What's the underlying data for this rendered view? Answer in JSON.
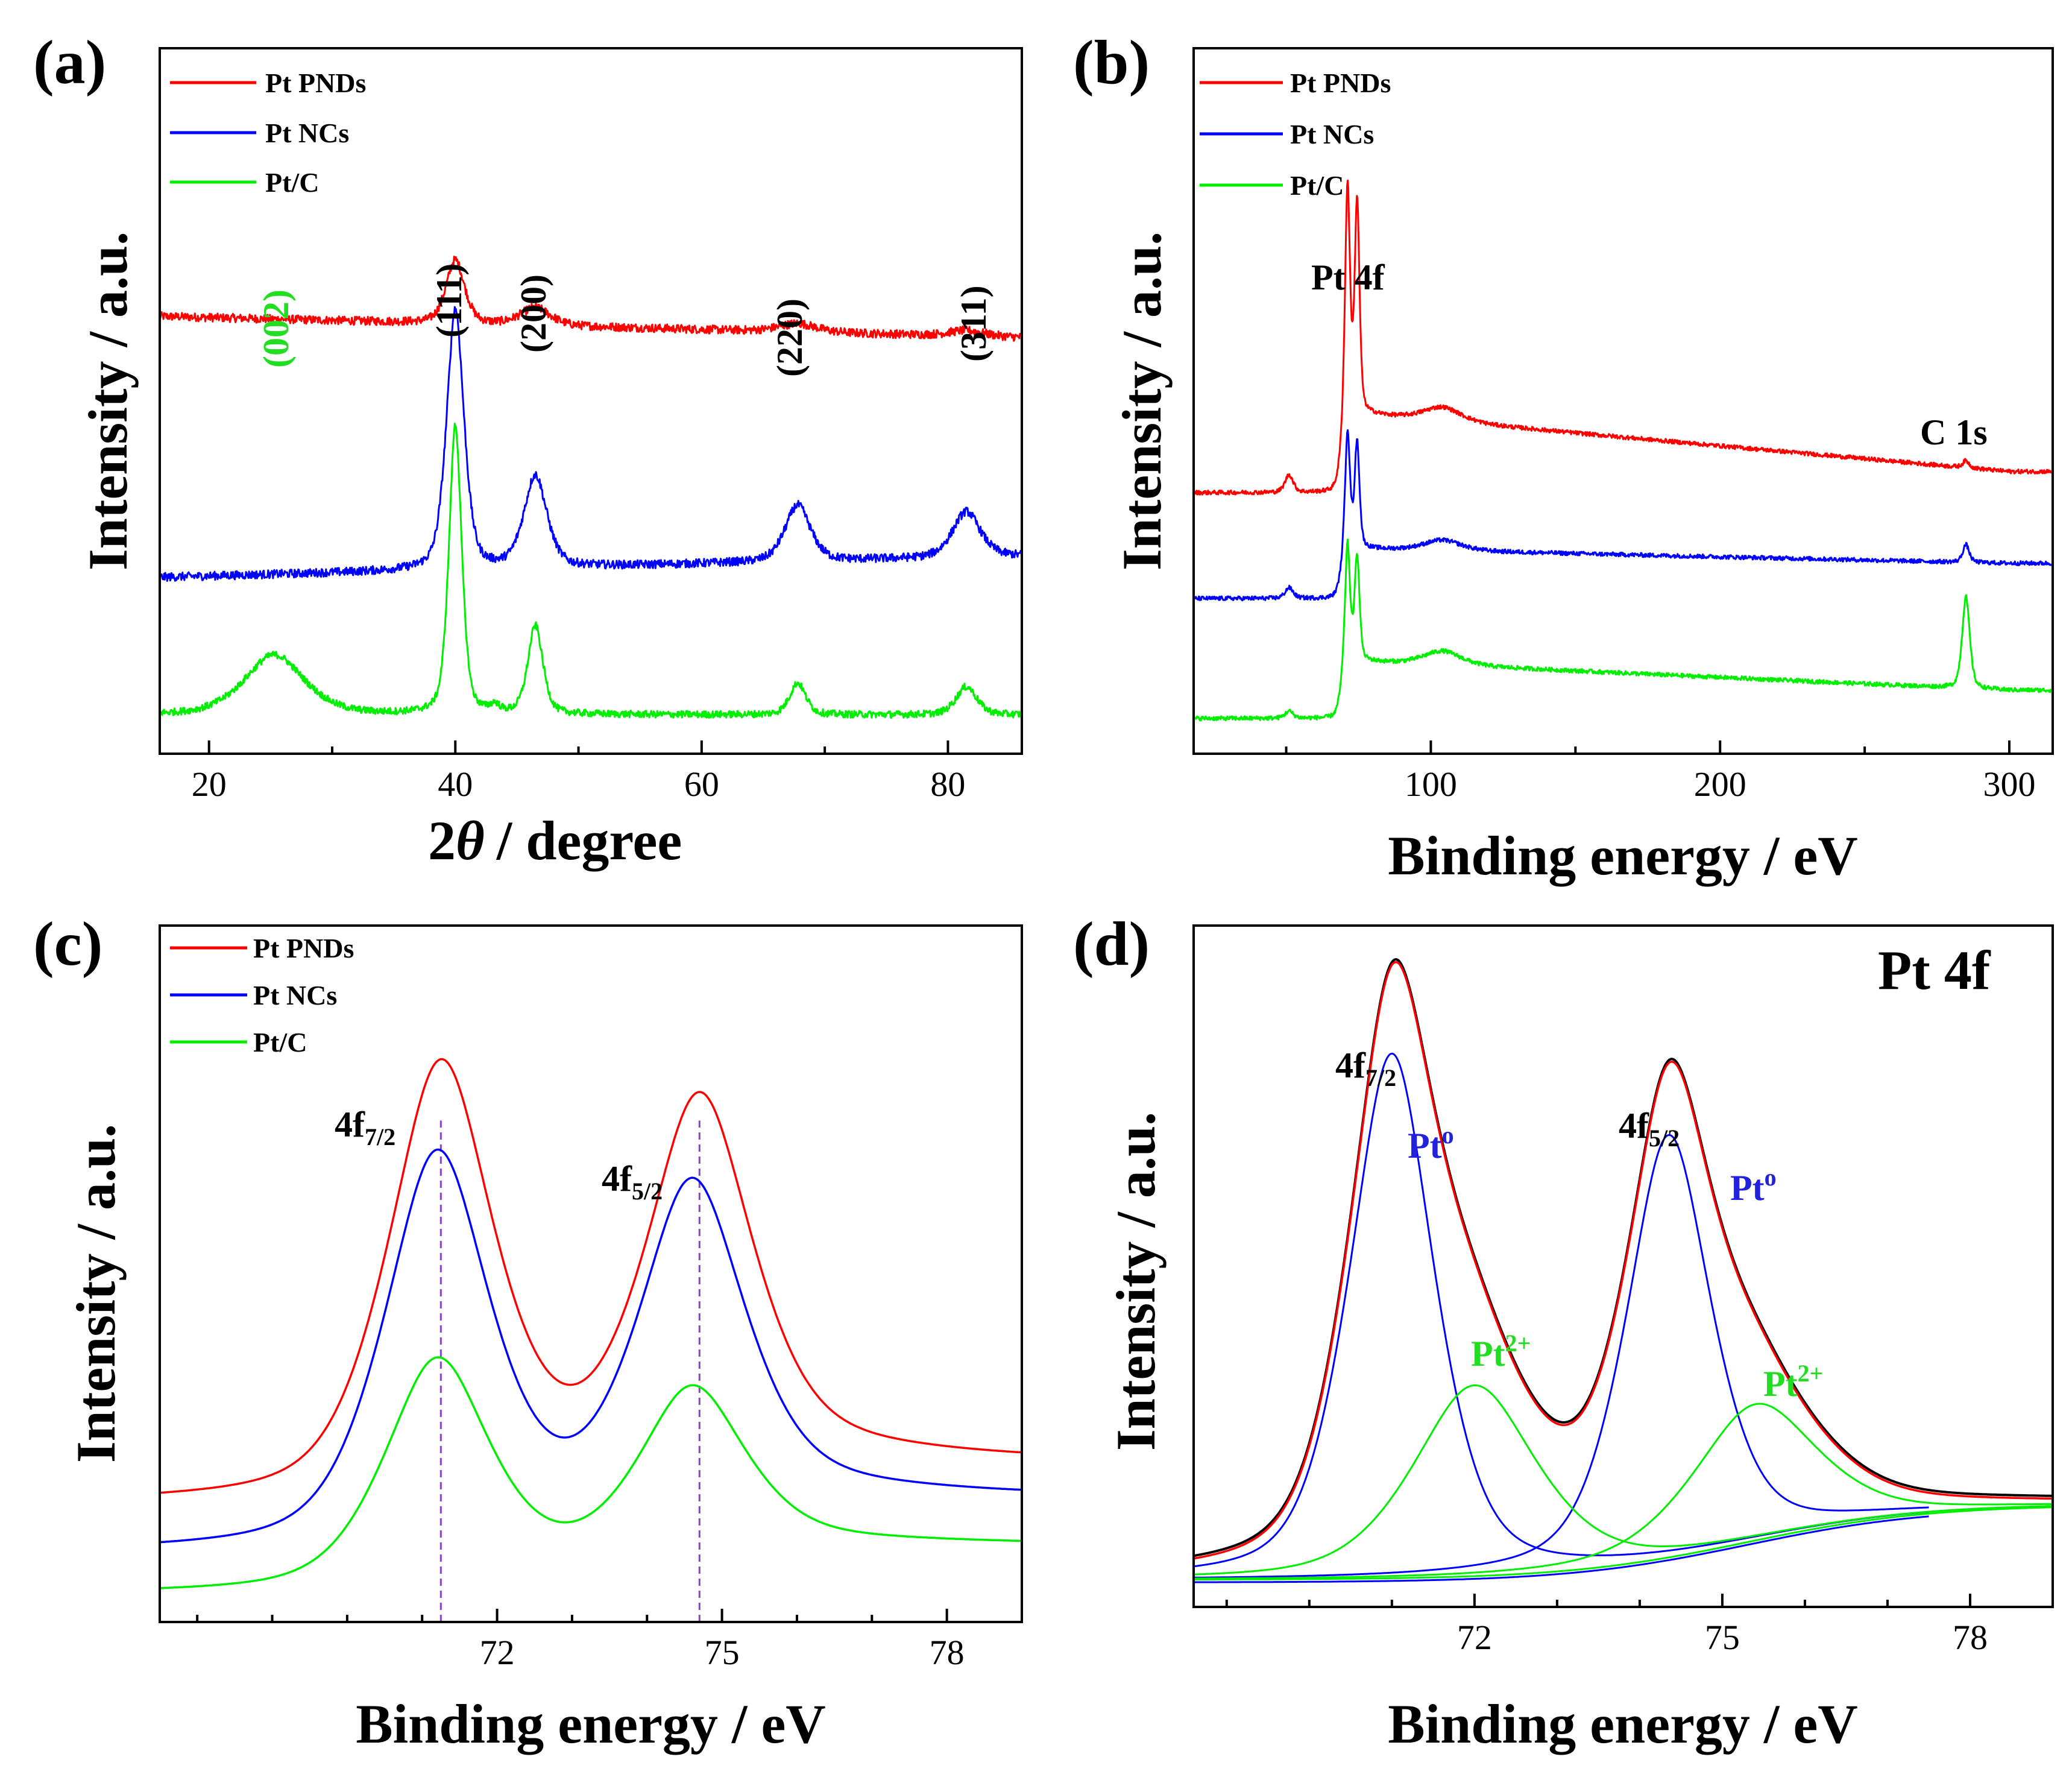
{
  "figure": {
    "aria": "Four-panel XRD and XPS characterization figure"
  },
  "chart_data": [
    {
      "panel": "(a)",
      "type": "line",
      "xlabel_prefix": "2",
      "xlabel_symbol": "θ",
      "xlabel_suffix": "/ degree",
      "ylabel": "Intensity / a.u.",
      "xlim": [
        16,
        86
      ],
      "xticks": [
        20,
        40,
        60,
        80
      ],
      "legend": [
        "Pt PNDs",
        "Pt NCs",
        "Pt/C"
      ],
      "peak_labels": [
        {
          "text": "(002)",
          "x": 25,
          "color": "#22dd22"
        },
        {
          "text": "(111)",
          "x": 40,
          "color": "#000000"
        },
        {
          "text": "(200)",
          "x": 46.5,
          "color": "#000000"
        },
        {
          "text": "(220)",
          "x": 67.8,
          "color": "#000000"
        },
        {
          "text": "(311)",
          "x": 81.5,
          "color": "#000000"
        }
      ],
      "series": [
        {
          "name": "Pt PNDs",
          "color": "#ff0000",
          "baseline": 0.62,
          "slope": -0.03,
          "noise": 0.006,
          "peaks": [
            [
              40,
              0.09,
              0.8
            ],
            [
              46.5,
              0.025,
              1.3
            ],
            [
              67.8,
              0.012,
              1.6
            ],
            [
              81.5,
              0.008,
              1.5
            ]
          ]
        },
        {
          "name": "Pt NCs",
          "color": "#0000ff",
          "baseline": 0.25,
          "slope": 0.03,
          "noise": 0.006,
          "peaks": [
            [
              40,
              0.37,
              0.75
            ],
            [
              46.5,
              0.13,
              1.0
            ],
            [
              67.8,
              0.08,
              1.1
            ],
            [
              81.5,
              0.065,
              1.2
            ]
          ]
        },
        {
          "name": "Pt/C",
          "color": "#00ee00",
          "baseline": 0.055,
          "slope": 0.0,
          "noise": 0.005,
          "peaks": [
            [
              25.3,
              0.085,
              2.6
            ],
            [
              40,
              0.41,
              0.55
            ],
            [
              46.5,
              0.125,
              0.65
            ],
            [
              67.8,
              0.045,
              0.7
            ],
            [
              81.5,
              0.04,
              0.9
            ],
            [
              43.2,
              0.01,
              0.4
            ]
          ]
        }
      ]
    },
    {
      "panel": "(b)",
      "type": "line",
      "xlabel": "Binding energy / eV",
      "ylabel": "Intensity / a.u.",
      "xlim": [
        18,
        315
      ],
      "xticks": [
        100,
        200,
        300
      ],
      "legend": [
        "Pt PNDs",
        "Pt NCs",
        "Pt/C"
      ],
      "annotations": [
        {
          "text": "Pt 4f",
          "x": 72,
          "y": 0.86
        },
        {
          "text": "C 1s",
          "x": 285,
          "y": 0.6
        }
      ],
      "series": [
        {
          "name": "Pt PNDs",
          "color": "#ff0000",
          "pre": 0.37,
          "post": 0.48,
          "tail": 0.4,
          "noise": 0.003,
          "peaks": [
            [
              71.2,
              0.33,
              0.9
            ],
            [
              74.5,
              0.3,
              0.9
            ],
            [
              51,
              0.025,
              1.5
            ],
            [
              104,
              0.02,
              7
            ],
            [
              285,
              0.01,
              1.2
            ]
          ]
        },
        {
          "name": "Pt NCs",
          "color": "#0000ff",
          "pre": 0.22,
          "post": 0.29,
          "tail": 0.27,
          "noise": 0.003,
          "peaks": [
            [
              71.2,
              0.17,
              0.9
            ],
            [
              74.5,
              0.15,
              0.9
            ],
            [
              51,
              0.015,
              1.5
            ],
            [
              104,
              0.015,
              7
            ],
            [
              285,
              0.025,
              1.2
            ]
          ]
        },
        {
          "name": "Pt/C",
          "color": "#00ee00",
          "pre": 0.05,
          "post": 0.13,
          "tail": 0.09,
          "noise": 0.003,
          "peaks": [
            [
              71.2,
              0.17,
              0.9
            ],
            [
              74.5,
              0.15,
              0.9
            ],
            [
              51,
              0.01,
              1.5
            ],
            [
              104,
              0.02,
              7
            ],
            [
              285,
              0.13,
              1.4
            ]
          ]
        }
      ]
    },
    {
      "panel": "(c)",
      "type": "line",
      "xlabel": "Binding energy / eV",
      "ylabel": "Intensity / a.u.",
      "xlim": [
        67.5,
        79
      ],
      "xticks": [
        72,
        75,
        78
      ],
      "legend": [
        "Pt PNDs",
        "Pt NCs",
        "Pt/C"
      ],
      "peak_labels": [
        {
          "main": "4f",
          "sub": "7/2",
          "x": 71.3
        },
        {
          "main": "4f",
          "sub": "5/2",
          "x": 74.75
        }
      ],
      "reference_lines": [
        71.25,
        74.7
      ],
      "series": [
        {
          "name": "Pt PNDs",
          "color": "#ff0000",
          "pre": 0.17,
          "post": 0.27,
          "peaks": [
            [
              71.25,
              0.61,
              0.75
            ],
            [
              74.7,
              0.51,
              0.75
            ]
          ]
        },
        {
          "name": "Pt NCs",
          "color": "#0000ff",
          "pre": 0.1,
          "post": 0.21,
          "peaks": [
            [
              71.2,
              0.55,
              0.75
            ],
            [
              74.6,
              0.45,
              0.75
            ]
          ]
        },
        {
          "name": "Pt/C",
          "color": "#00ee00",
          "pre": 0.04,
          "post": 0.13,
          "peaks": [
            [
              71.2,
              0.32,
              0.75
            ],
            [
              74.6,
              0.23,
              0.75
            ]
          ]
        }
      ]
    },
    {
      "panel": "(d)",
      "type": "line",
      "title": "Pt 4f",
      "xlabel": "Binding energy / eV",
      "ylabel": "Intensity / a.u.",
      "xlim": [
        68.6,
        79
      ],
      "xticks": [
        72,
        75,
        78
      ],
      "peak_labels": [
        {
          "main": "4f",
          "sub": "7/2",
          "x": 71
        },
        {
          "main": "4f",
          "sub": "5/2",
          "x": 74.35
        }
      ],
      "species_labels": [
        {
          "main": "Pt",
          "sup": "o",
          "x": 71.9,
          "y": 0.86,
          "color": "#2222dd"
        },
        {
          "main": "Pt",
          "sup": "o",
          "x": 75.2,
          "y": 0.75,
          "color": "#2222dd"
        },
        {
          "main": "Pt",
          "sup": "2+",
          "x": 72.75,
          "y": 0.45,
          "color": "#22dd22"
        },
        {
          "main": "Pt",
          "sup": "2+",
          "x": 76.45,
          "y": 0.4,
          "color": "#22dd22"
        }
      ],
      "background": {
        "pre": 0.04,
        "post": 0.15,
        "center": 75.3
      },
      "components": [
        {
          "name": "Pt0 4f7/2",
          "color": "#0000ff",
          "center": 71.0,
          "height": 0.77,
          "width": 0.55,
          "xrange": [
            68.6,
            77.5
          ]
        },
        {
          "name": "Pt0 4f5/2",
          "color": "#0000ff",
          "center": 74.35,
          "height": 0.62,
          "width": 0.55,
          "xrange": [
            68.6,
            77.5
          ]
        },
        {
          "name": "Pt2+ 4f7/2",
          "color": "#00ee00",
          "center": 72.0,
          "height": 0.28,
          "width": 0.8,
          "xrange": [
            68.6,
            79
          ]
        },
        {
          "name": "Pt2+ 4f5/2",
          "color": "#00ee00",
          "center": 75.4,
          "height": 0.2,
          "width": 0.8,
          "xrange": [
            68.6,
            79
          ]
        }
      ],
      "envelope_colors": [
        "#000000",
        "#ff0000"
      ]
    }
  ]
}
